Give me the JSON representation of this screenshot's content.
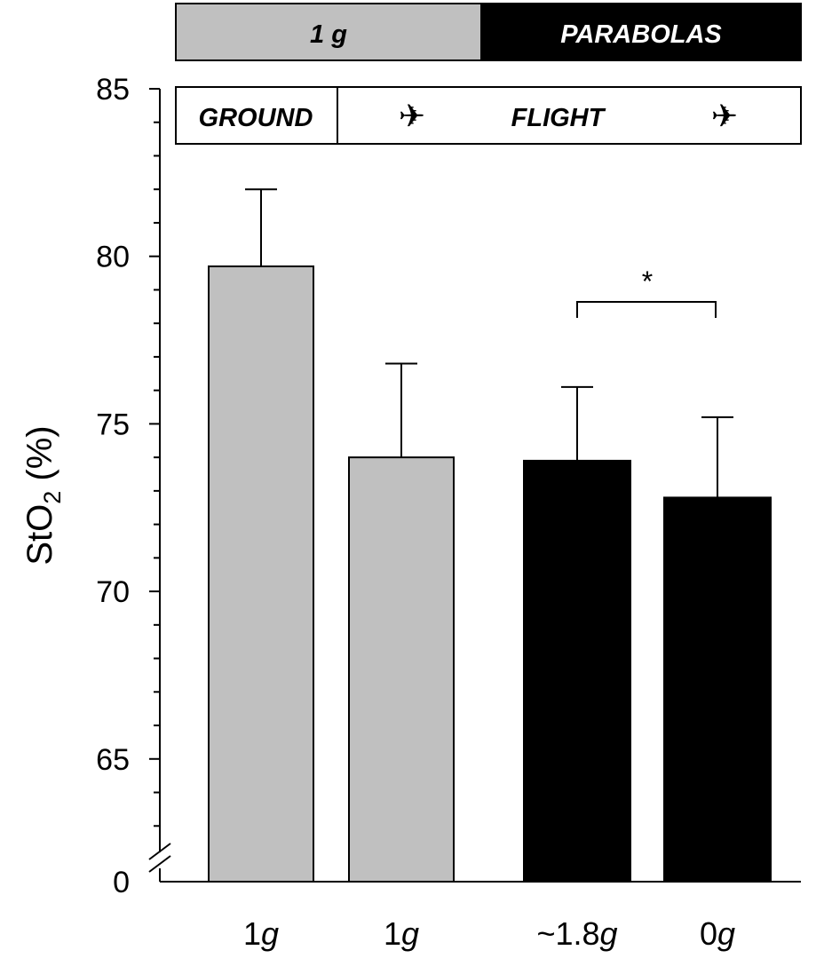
{
  "chart_data": {
    "type": "bar",
    "ylabel": {
      "main": "StO",
      "sub": "2",
      "suffix": " (%)"
    },
    "ylim": [
      62,
      85
    ],
    "y_ticks": [
      65,
      70,
      75,
      80,
      85
    ],
    "axis_break": {
      "below_label": "0"
    },
    "categories": [
      {
        "num": "1",
        "unit": "g"
      },
      {
        "num": "1",
        "unit": "g"
      },
      {
        "num": "~1.8",
        "unit": "g"
      },
      {
        "num": "0",
        "unit": "g"
      }
    ],
    "values": [
      79.7,
      74.0,
      73.9,
      72.8
    ],
    "errors": [
      2.3,
      2.8,
      2.2,
      2.4
    ],
    "bar_colors": [
      "#c0c0c0",
      "#c0c0c0",
      "#000000",
      "#000000"
    ],
    "top_band": [
      {
        "label": "1 g",
        "fill": "#c0c0c0",
        "text_color": "#000000",
        "span": [
          0,
          1
        ]
      },
      {
        "label": "PARABOLAS",
        "fill": "#000000",
        "text_color": "#ffffff",
        "span": [
          2,
          3
        ]
      }
    ],
    "inner_band": {
      "ground": "GROUND",
      "flight": "FLIGHT",
      "plane_icon": "airplane-icon",
      "plane_glyph": "✈"
    },
    "significance": {
      "between": [
        2,
        3
      ],
      "label": "*"
    },
    "grid": false
  }
}
